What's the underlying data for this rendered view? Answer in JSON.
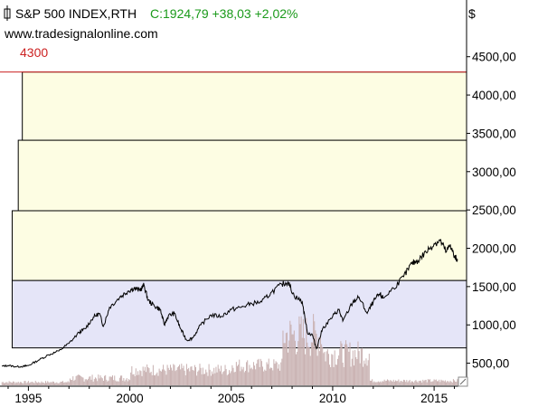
{
  "header": {
    "symbol": "S&P 500 INDEX,RTH",
    "close_text": "C:1924,79 +38,03 +2,02%",
    "source": "www.tradesignalonline.com",
    "level_label": "4300",
    "currency_label": "$"
  },
  "colors": {
    "price_line": "#000000",
    "level_line": "#cc2222",
    "level_text": "#cc2222",
    "close_text": "#1a9a1a",
    "zone_yellow": "#fdfde3",
    "zone_blue": "#e5e5f8",
    "volume": "#c8b0b0"
  },
  "chart_data": {
    "type": "line",
    "xlim": [
      1993.6,
      2016.6
    ],
    "ylim": [
      200,
      4650
    ],
    "x_ticks": [
      1995,
      2000,
      2005,
      2010,
      2015
    ],
    "x_tick_labels": [
      "1995",
      "2000",
      "2005",
      "2010",
      "2015"
    ],
    "y_ticks": [
      500,
      1000,
      1500,
      2000,
      2500,
      3000,
      3500,
      4000,
      4500
    ],
    "y_tick_labels": [
      "500,00",
      "1000,00",
      "1500,00",
      "2000,00",
      "2500,00",
      "3000,00",
      "3500,00",
      "4000,00",
      "4500,00"
    ],
    "horizontal_line": 4300,
    "zones": [
      {
        "x_start": 1994.2,
        "y_low": 700,
        "y_high": 1580,
        "fill": "blue"
      },
      {
        "x_start": 1994.2,
        "y_low": 1580,
        "y_high": 2490,
        "fill": "yellow"
      },
      {
        "x_start": 1994.5,
        "y_low": 2490,
        "y_high": 3410,
        "fill": "yellow"
      },
      {
        "x_start": 1994.7,
        "y_low": 3410,
        "y_high": 4300,
        "fill": "yellow"
      }
    ],
    "series": [
      {
        "values": [
          [
            1993.7,
            460
          ],
          [
            1994.0,
            470
          ],
          [
            1994.4,
            455
          ],
          [
            1994.8,
            460
          ],
          [
            1995.0,
            470
          ],
          [
            1995.5,
            540
          ],
          [
            1996.0,
            610
          ],
          [
            1996.5,
            660
          ],
          [
            1997.0,
            760
          ],
          [
            1997.5,
            900
          ],
          [
            1997.8,
            950
          ],
          [
            1998.2,
            1100
          ],
          [
            1998.5,
            1150
          ],
          [
            1998.7,
            980
          ],
          [
            1999.0,
            1230
          ],
          [
            1999.5,
            1360
          ],
          [
            1999.9,
            1440
          ],
          [
            2000.2,
            1480
          ],
          [
            2000.5,
            1450
          ],
          [
            2000.7,
            1520
          ],
          [
            2000.9,
            1320
          ],
          [
            2001.2,
            1250
          ],
          [
            2001.5,
            1200
          ],
          [
            2001.7,
            1000
          ],
          [
            2001.9,
            1120
          ],
          [
            2002.2,
            1150
          ],
          [
            2002.5,
            950
          ],
          [
            2002.8,
            800
          ],
          [
            2003.1,
            830
          ],
          [
            2003.5,
            1000
          ],
          [
            2004.0,
            1130
          ],
          [
            2004.5,
            1110
          ],
          [
            2005.0,
            1200
          ],
          [
            2005.5,
            1230
          ],
          [
            2006.0,
            1280
          ],
          [
            2006.5,
            1300
          ],
          [
            2007.0,
            1430
          ],
          [
            2007.5,
            1530
          ],
          [
            2007.8,
            1560
          ],
          [
            2008.1,
            1380
          ],
          [
            2008.5,
            1300
          ],
          [
            2008.75,
            900
          ],
          [
            2009.0,
            870
          ],
          [
            2009.2,
            690
          ],
          [
            2009.5,
            950
          ],
          [
            2010.0,
            1110
          ],
          [
            2010.3,
            1200
          ],
          [
            2010.5,
            1050
          ],
          [
            2011.0,
            1300
          ],
          [
            2011.3,
            1360
          ],
          [
            2011.7,
            1150
          ],
          [
            2012.0,
            1300
          ],
          [
            2012.3,
            1400
          ],
          [
            2012.5,
            1350
          ],
          [
            2013.0,
            1480
          ],
          [
            2013.5,
            1630
          ],
          [
            2013.9,
            1800
          ],
          [
            2014.2,
            1840
          ],
          [
            2014.6,
            1950
          ],
          [
            2015.0,
            2060
          ],
          [
            2015.3,
            2100
          ],
          [
            2015.6,
            1950
          ],
          [
            2015.8,
            2050
          ],
          [
            2016.0,
            1880
          ],
          [
            2016.15,
            1860
          ]
        ]
      }
    ],
    "volume_note": "volume histogram at bottom (unscaled)"
  }
}
